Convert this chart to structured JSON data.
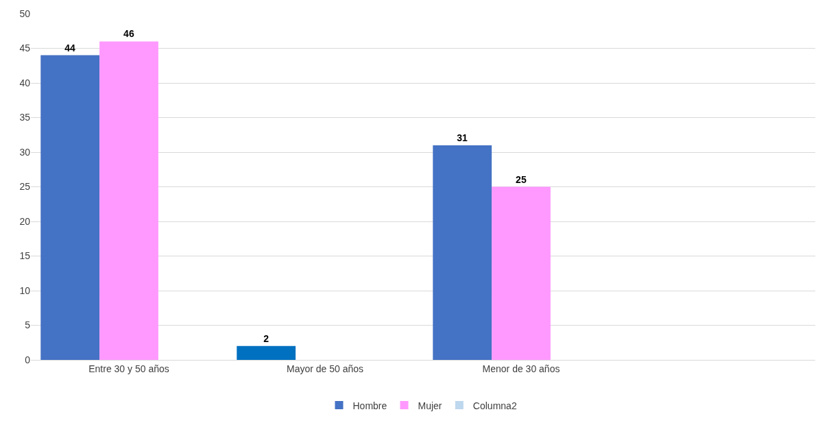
{
  "chart_data": {
    "type": "bar",
    "categories": [
      "Entre 30 y 50 años",
      "Mayor de 50 años",
      "Menor de 30 años",
      null
    ],
    "series": [
      {
        "name": "Hombre",
        "color": "#4472c4",
        "colors": [
          "#4472c4",
          "#0070c0",
          "#4472c4",
          "#4472c4"
        ],
        "values": [
          44,
          2,
          31,
          null
        ]
      },
      {
        "name": "Mujer",
        "color": "#ff99ff",
        "values": [
          46,
          null,
          25,
          null
        ]
      },
      {
        "name": "Columna2",
        "color": "#bdd7ee",
        "values": [
          null,
          null,
          null,
          null
        ]
      }
    ],
    "ylim": [
      0,
      50
    ],
    "yticks": [
      0,
      5,
      10,
      15,
      20,
      25,
      30,
      35,
      40,
      45,
      50
    ],
    "grid": "y",
    "legend": "bottom",
    "data_labels": true
  }
}
